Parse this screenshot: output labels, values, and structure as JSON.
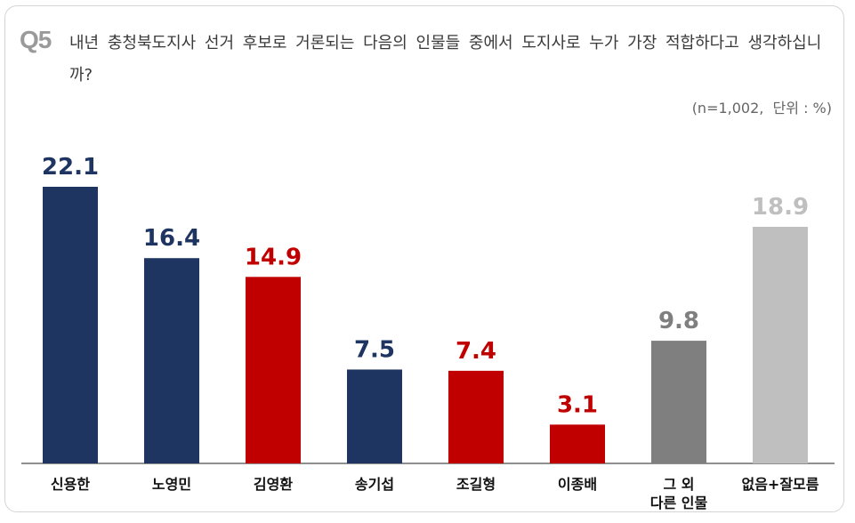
{
  "header": {
    "q_number": "Q5",
    "question": "내년 충청북도지사 선거 후보로 거론되는 다음의 인물들 중에서 도지사로 누가 가장 적합하다고 생각하십니까?",
    "note": "(n=1,002,  단위 : %)"
  },
  "chart_data": {
    "type": "bar",
    "title": "",
    "xlabel": "",
    "ylabel": "",
    "ylim": [
      0,
      22.1
    ],
    "grid": false,
    "legend": "none",
    "categories": [
      "신용한",
      "노영민",
      "김영환",
      "송기섭",
      "조길형",
      "이종배",
      "그 외\n다른 인물",
      "없음+잘모름"
    ],
    "values": [
      22.1,
      16.4,
      14.9,
      7.5,
      7.4,
      3.1,
      9.8,
      18.9
    ],
    "value_labels": [
      "22.1",
      "16.4",
      "14.9",
      "7.5",
      "7.4",
      "3.1",
      "9.8",
      "18.9"
    ],
    "colors": [
      "#1f3561",
      "#1f3561",
      "#c00000",
      "#1f3561",
      "#c00000",
      "#c00000",
      "#7f7f7f",
      "#bfbfbf"
    ],
    "label_colors": [
      "#1f3561",
      "#1f3561",
      "#c00000",
      "#1f3561",
      "#c00000",
      "#c00000",
      "#7f7f7f",
      "#bfbfbf"
    ]
  }
}
